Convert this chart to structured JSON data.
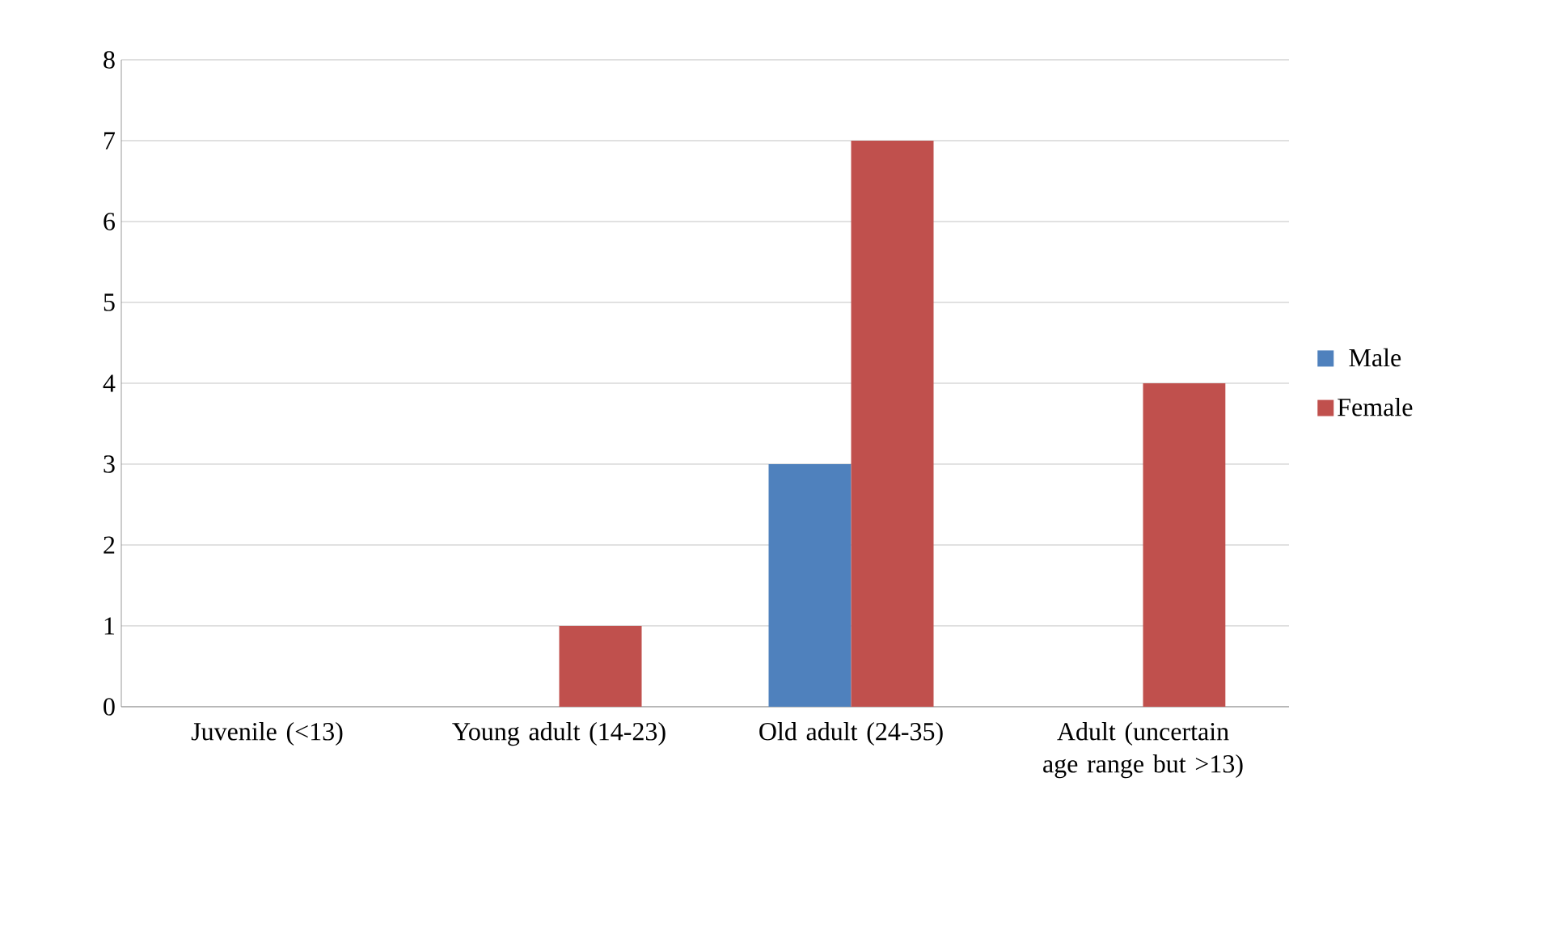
{
  "chart_data": {
    "type": "bar",
    "categories": [
      "Juvenile (<13)",
      "Young adult (14-23)",
      "Old adult (24-35)",
      "Adult (uncertain age range but >13)"
    ],
    "series": [
      {
        "name": "Male",
        "color": "#4f81bd",
        "values": [
          0,
          0,
          3,
          0
        ]
      },
      {
        "name": "Female",
        "color": "#c0504d",
        "values": [
          0,
          1,
          7,
          4
        ]
      }
    ],
    "ylim": [
      0,
      8
    ],
    "yticks": [
      0,
      1,
      2,
      3,
      4,
      5,
      6,
      7,
      8
    ],
    "grid": "y",
    "legend": "right"
  }
}
